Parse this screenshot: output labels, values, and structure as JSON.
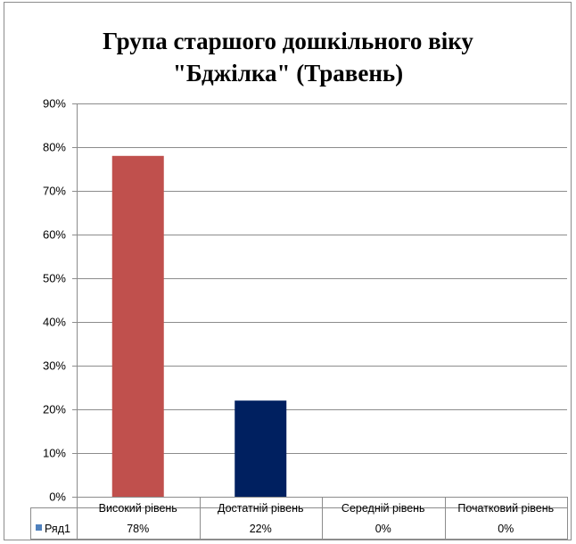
{
  "chart_data": {
    "type": "bar",
    "title_lines": [
      "Група старшого дошкільного віку",
      "\"Бджілка\" (Травень)"
    ],
    "categories": [
      "Високий рівень",
      "Достатній рівень",
      "Середній рівень",
      "Початковий рівень"
    ],
    "series": [
      {
        "name": "Ряд1",
        "values": [
          78,
          22,
          0,
          0
        ],
        "value_labels": [
          "78%",
          "22%",
          "0%",
          "0%"
        ],
        "colors": [
          "#c0504d",
          "#002060",
          "#4f81bd",
          "#4f81bd"
        ]
      }
    ],
    "legend_color": "#4f81bd",
    "ylim": [
      0,
      90
    ],
    "yticks": [
      0,
      10,
      20,
      30,
      40,
      50,
      60,
      70,
      80,
      90
    ],
    "ytick_labels": [
      "0%",
      "10%",
      "20%",
      "30%",
      "40%",
      "50%",
      "60%",
      "70%",
      "80%",
      "90%"
    ],
    "grid": true,
    "legend_placement": "data-table"
  }
}
